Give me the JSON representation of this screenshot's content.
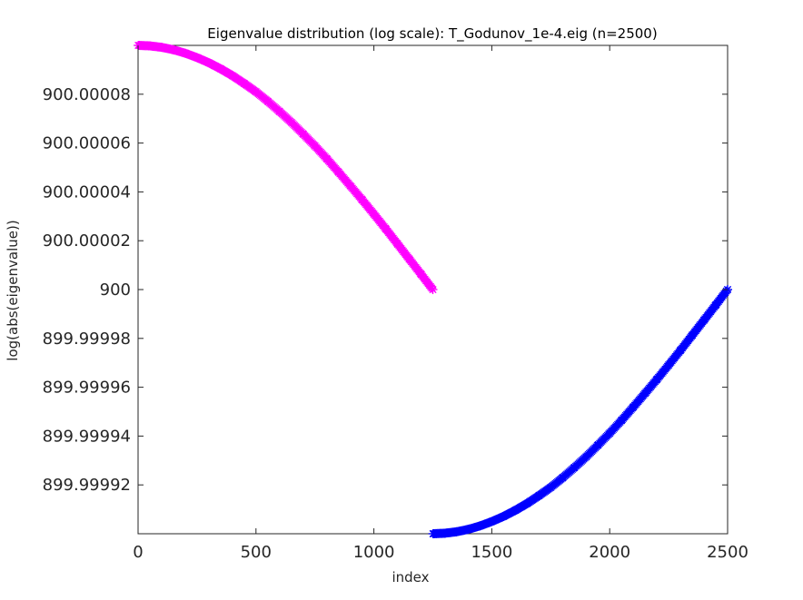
{
  "chart_data": {
    "type": "scatter",
    "title": "Eigenvalue distribution (log scale): T_Godunov_1e-4.eig (n=2500)",
    "xlabel": "index",
    "ylabel": "log(abs(eigenvalue))",
    "xlim": [
      0,
      2500
    ],
    "ylim": [
      899.9999,
      900.0001
    ],
    "xticks": [
      0,
      500,
      1000,
      1500,
      2000,
      2500
    ],
    "xtick_labels": [
      "0",
      "500",
      "1000",
      "1500",
      "2000",
      "2500"
    ],
    "yticks": [
      899.99992,
      899.99994,
      899.99996,
      899.99998,
      900,
      900.00002,
      900.00004,
      900.00006,
      900.00008
    ],
    "ytick_labels": [
      "899.99992",
      "899.99994",
      "899.99996",
      "899.99998",
      "900",
      "900.00002",
      "900.00004",
      "900.00006",
      "900.00008"
    ],
    "marker": "asterisk",
    "grid": false,
    "series": [
      {
        "color": "#ff00ff",
        "x": [
          1,
          50,
          100,
          150,
          200,
          250,
          300,
          350,
          400,
          450,
          500,
          550,
          600,
          650,
          700,
          750,
          800,
          850,
          900,
          950,
          1000,
          1050,
          1100,
          1150,
          1200,
          1250
        ],
        "y": [
          900.0001,
          900.0000998,
          900.0000992,
          900.0000982,
          900.0000968,
          900.000095,
          900.0000929,
          900.0000904,
          900.0000876,
          900.0000844,
          900.000081,
          900.0000771,
          900.0000729,
          900.0000685,
          900.0000637,
          900.0000588,
          900.0000536,
          900.0000481,
          900.0000425,
          900.0000368,
          900.0000309,
          900.0000249,
          900.0000187,
          900.0000125,
          900.0000063,
          900.0
        ]
      },
      {
        "color": "#0000ff",
        "x": [
          1251,
          1300,
          1350,
          1400,
          1450,
          1500,
          1550,
          1600,
          1650,
          1700,
          1750,
          1800,
          1850,
          1900,
          1950,
          2000,
          2050,
          2100,
          2150,
          2200,
          2250,
          2300,
          2350,
          2400,
          2450,
          2500
        ],
        "y": [
          899.9999,
          899.9999002,
          899.9999008,
          899.9999018,
          899.9999032,
          899.999905,
          899.9999071,
          899.9999096,
          899.9999124,
          899.9999156,
          899.999919,
          899.9999229,
          899.9999271,
          899.9999315,
          899.9999363,
          899.9999412,
          899.9999464,
          899.9999519,
          899.9999575,
          899.9999632,
          899.9999691,
          899.9999751,
          899.9999813,
          899.9999875,
          899.9999937,
          900.0
        ]
      }
    ]
  }
}
